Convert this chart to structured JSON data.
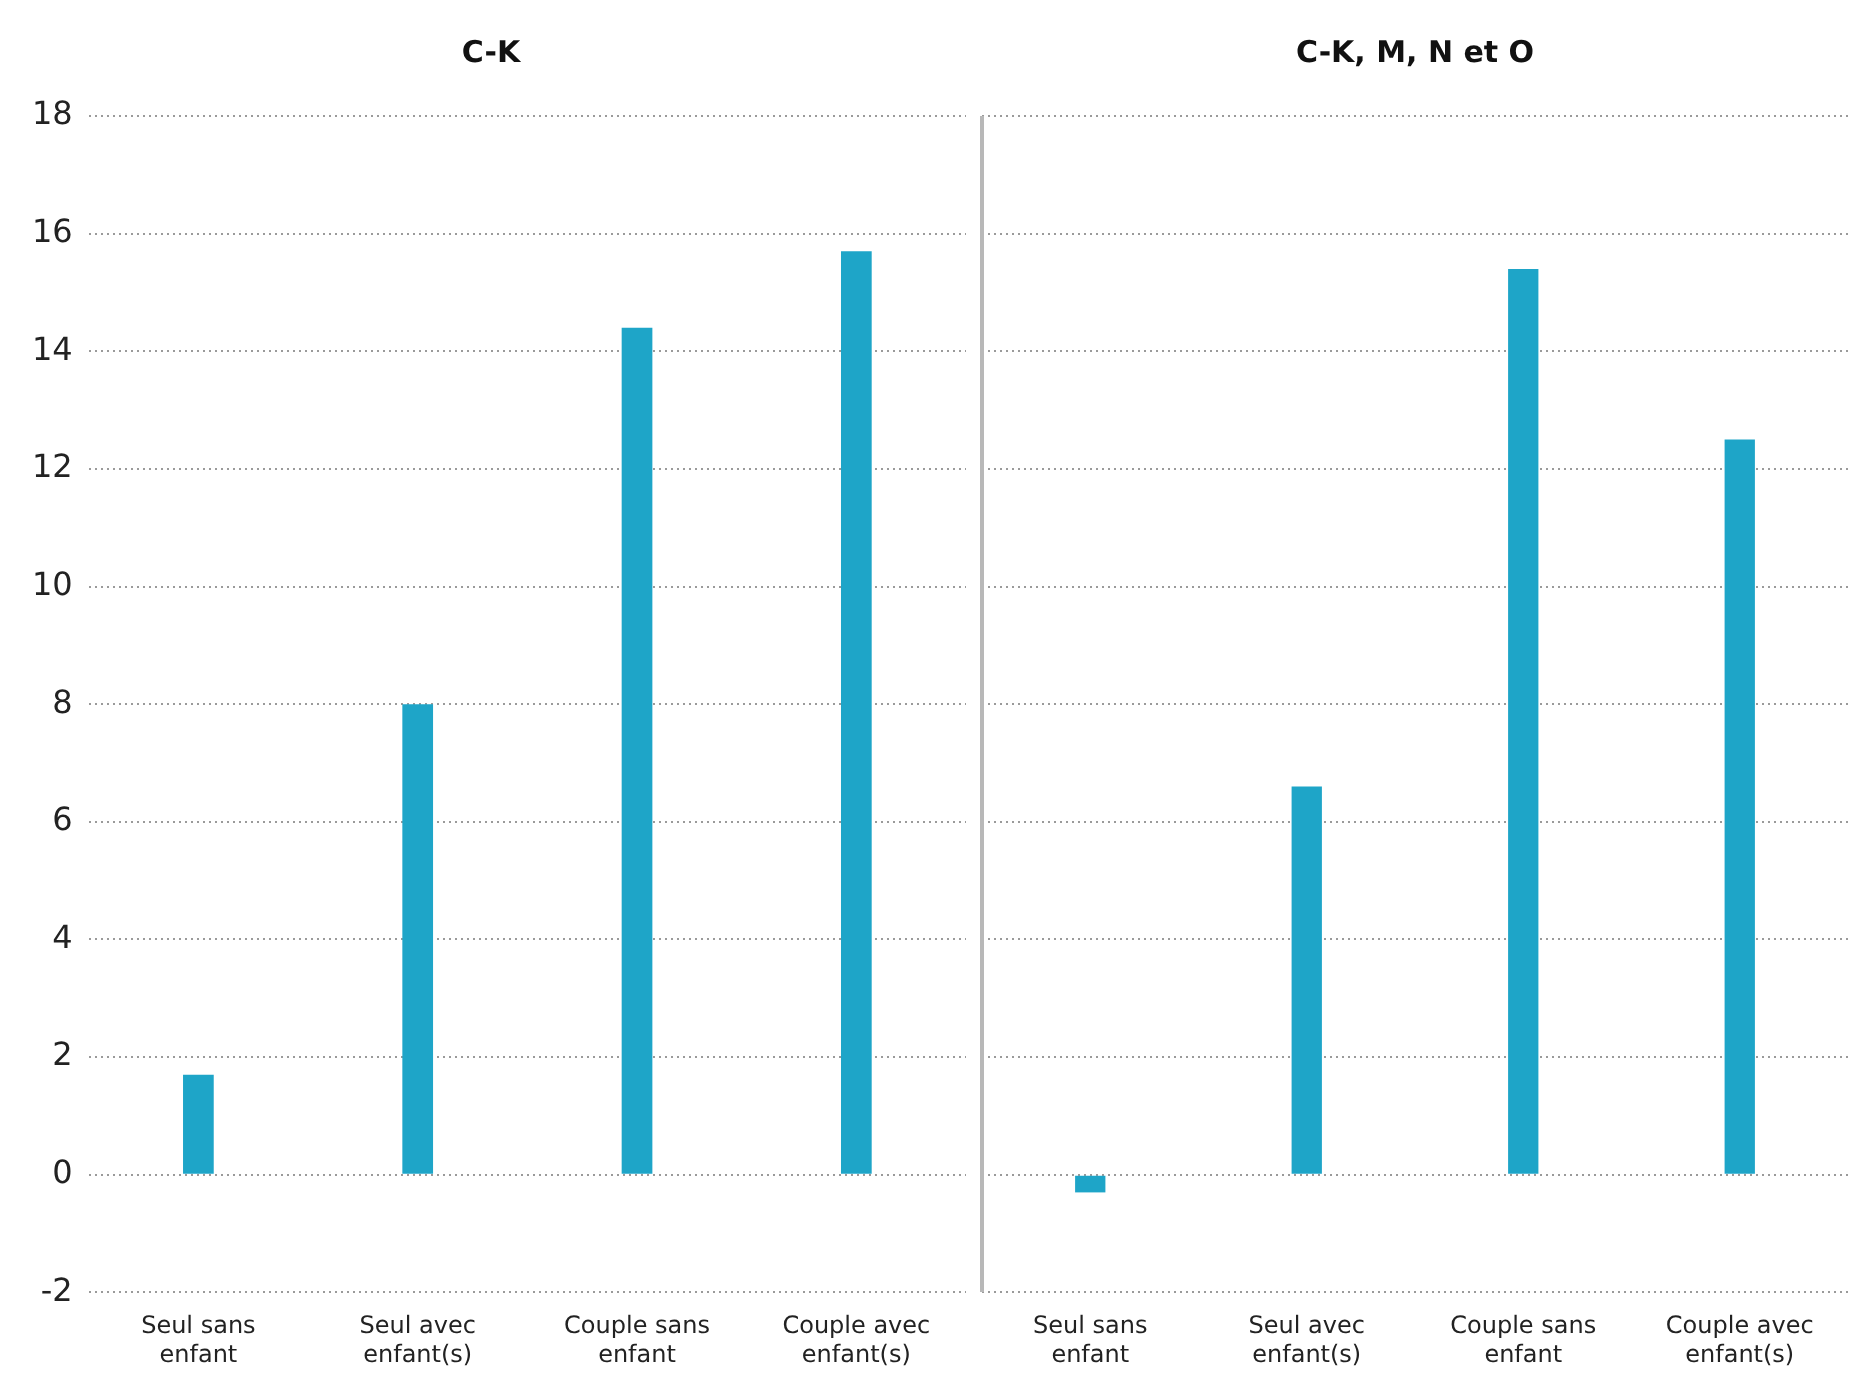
{
  "chart_data": [
    {
      "type": "bar",
      "title": "C-K",
      "categories": [
        "Seul sans enfant",
        "Seul avec enfant(s)",
        "Couple sans enfant",
        "Couple avec enfant(s)"
      ],
      "values": [
        1.7,
        8.0,
        14.4,
        15.7
      ],
      "color": "#1ea5c8",
      "ylim": [
        -2,
        18
      ],
      "yticks": [
        -2,
        0,
        2,
        4,
        6,
        8,
        10,
        12,
        14,
        16,
        18
      ],
      "grid": "y"
    },
    {
      "type": "bar",
      "title": "C-K, M, N et O",
      "categories": [
        "Seul sans enfant",
        "Seul avec enfant(s)",
        "Couple sans enfant",
        "Couple avec enfant(s)"
      ],
      "values": [
        -0.3,
        6.6,
        15.4,
        12.5
      ],
      "color": "#1ea5c8",
      "ylim": [
        -2,
        18
      ],
      "yticks": [
        -2,
        0,
        2,
        4,
        6,
        8,
        10,
        12,
        14,
        16,
        18
      ],
      "grid": "y",
      "tick_labels": "x"
    }
  ]
}
